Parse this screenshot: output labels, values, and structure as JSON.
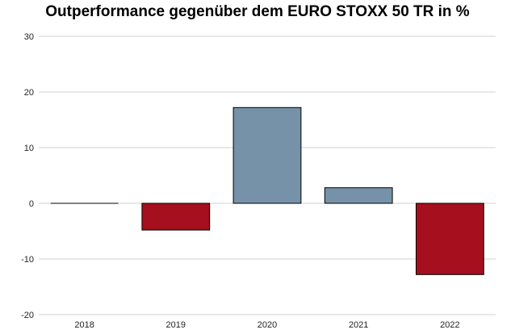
{
  "chart_data": {
    "type": "bar",
    "title": "Outperformance gegenüber dem EURO STOXX 50 TR in %",
    "xlabel": "",
    "ylabel": "",
    "categories": [
      "2018",
      "2019",
      "2020",
      "2021",
      "2022"
    ],
    "values": [
      0.0,
      -4.8,
      17.2,
      2.8,
      -12.8
    ],
    "ylim": [
      -20,
      30
    ],
    "yticks": [
      -20,
      -10,
      0,
      10,
      20,
      30
    ],
    "grid": true,
    "colors": {
      "positive": "#7692a8",
      "negative": "#a50f1e",
      "grid": "#d0d0d0",
      "bar_border": "#000000"
    }
  }
}
